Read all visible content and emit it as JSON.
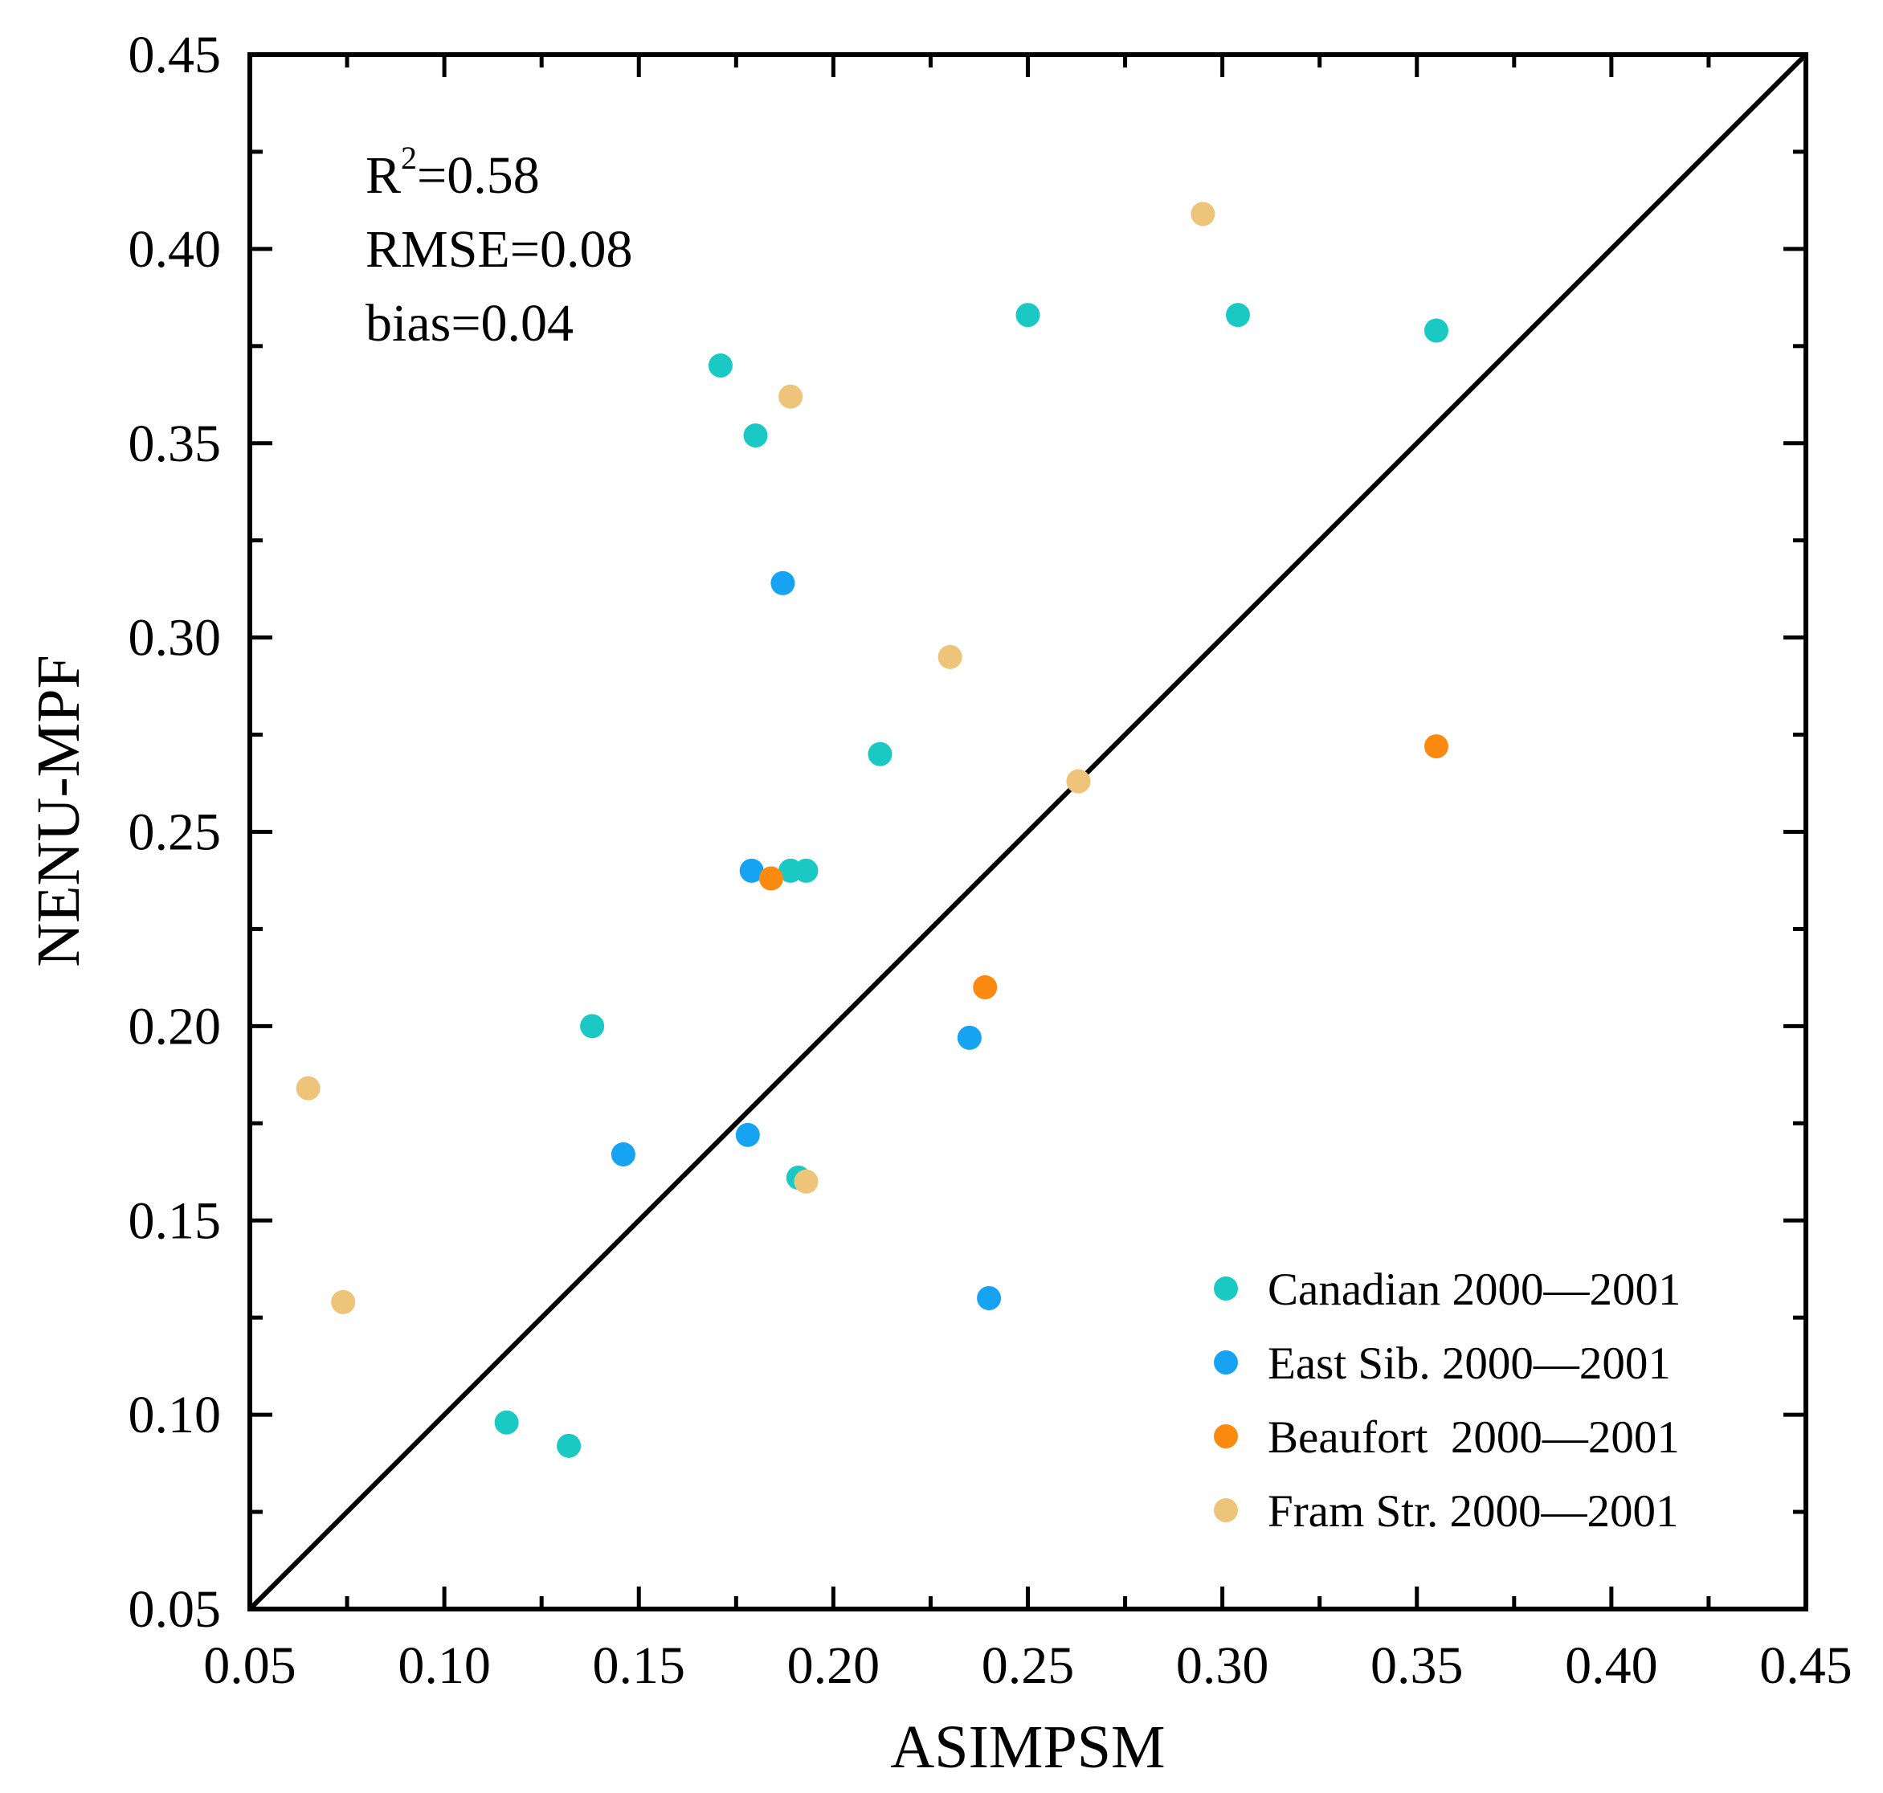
{
  "chart_data": {
    "type": "scatter",
    "xlabel": "ASIMPSM",
    "ylabel": "NENU-MPF",
    "xlim": [
      0.05,
      0.45
    ],
    "ylim": [
      0.05,
      0.45
    ],
    "x_ticks": [
      "0.05",
      "0.10",
      "0.15",
      "0.20",
      "0.25",
      "0.30",
      "0.35",
      "0.40",
      "0.45"
    ],
    "y_ticks": [
      "0.05",
      "0.10",
      "0.15",
      "0.20",
      "0.25",
      "0.30",
      "0.35",
      "0.40",
      "0.45"
    ],
    "grid": false,
    "reference_line": "1:1",
    "annotations": {
      "r2_prefix": "R",
      "r2_sup": "2",
      "r2_value": "=0.58",
      "rmse": "RMSE=0.08",
      "bias": "bias=0.04"
    },
    "legend_position": "bottom-right",
    "series": [
      {
        "name": "Canadian 2000—2001",
        "color": "#1ac9c3",
        "points": [
          [
            0.171,
            0.37
          ],
          [
            0.18,
            0.352
          ],
          [
            0.25,
            0.383
          ],
          [
            0.304,
            0.383
          ],
          [
            0.355,
            0.379
          ],
          [
            0.212,
            0.27
          ],
          [
            0.189,
            0.24
          ],
          [
            0.193,
            0.24
          ],
          [
            0.138,
            0.2
          ],
          [
            0.191,
            0.161
          ],
          [
            0.116,
            0.098
          ],
          [
            0.132,
            0.092
          ]
        ]
      },
      {
        "name": "East Sib. 2000—2001",
        "color": "#16a3f2",
        "points": [
          [
            0.187,
            0.314
          ],
          [
            0.179,
            0.24
          ],
          [
            0.235,
            0.197
          ],
          [
            0.178,
            0.172
          ],
          [
            0.146,
            0.167
          ],
          [
            0.24,
            0.13
          ]
        ]
      },
      {
        "name": "Beaufort  2000—2001",
        "color": "#fb8a10",
        "points": [
          [
            0.355,
            0.272
          ],
          [
            0.184,
            0.238
          ],
          [
            0.239,
            0.21
          ]
        ]
      },
      {
        "name": "Fram Str. 2000—2001",
        "color": "#eec47b",
        "points": [
          [
            0.295,
            0.409
          ],
          [
            0.189,
            0.362
          ],
          [
            0.23,
            0.295
          ],
          [
            0.263,
            0.263
          ],
          [
            0.193,
            0.16
          ],
          [
            0.065,
            0.184
          ],
          [
            0.074,
            0.129
          ]
        ]
      }
    ]
  }
}
